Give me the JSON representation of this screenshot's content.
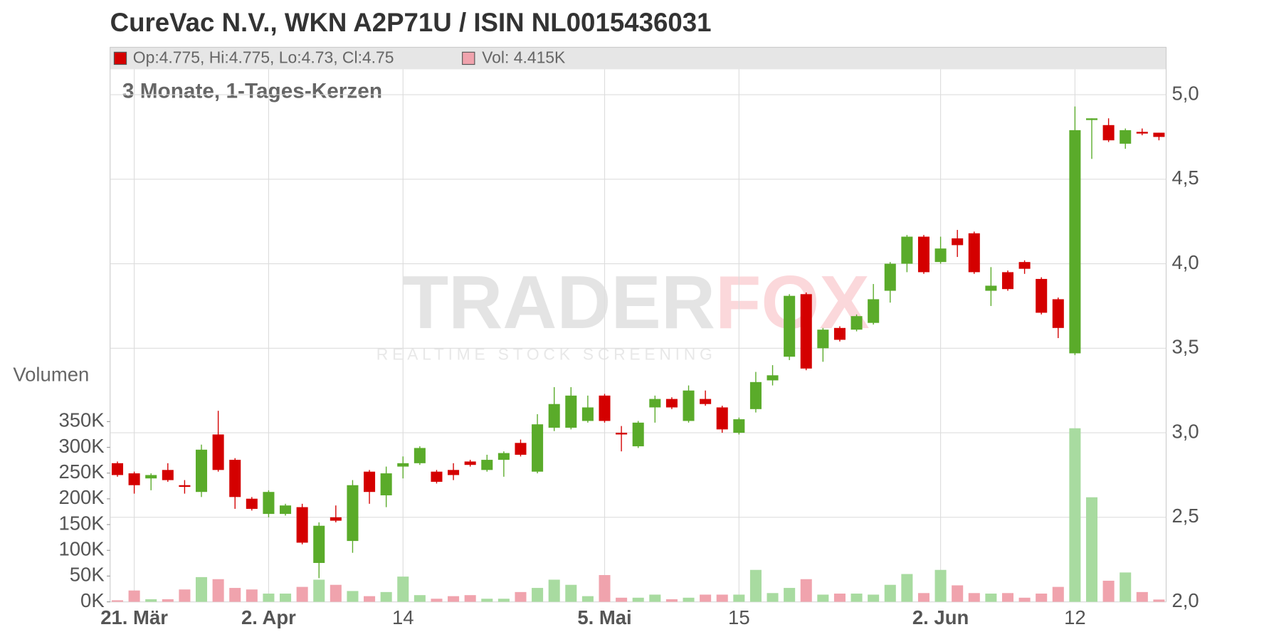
{
  "chart_data": {
    "type": "candlestick",
    "title": "CureVac N.V., WKN A2P71U / ISIN NL0015436031",
    "info": "Op:4.775, Hi:4.775, Lo:4.73, Cl:4.75",
    "volume_info": "Vol: 4.415K",
    "subtitle": "3 Monate, 1-Tages-Kerzen",
    "y2_label": "Volumen",
    "watermark": [
      "TRADER",
      "FOX"
    ],
    "watermark_subtitle": "REALTIME STOCK SCREENING",
    "categories": [
      null,
      "21. Mär",
      null,
      null,
      null,
      null,
      null,
      null,
      null,
      "2. Apr",
      null,
      null,
      null,
      null,
      null,
      null,
      null,
      "14",
      null,
      null,
      null,
      null,
      null,
      null,
      null,
      null,
      null,
      null,
      null,
      "5. Mai",
      null,
      null,
      null,
      null,
      null,
      null,
      null,
      "15",
      null,
      null,
      null,
      null,
      null,
      null,
      null,
      null,
      null,
      null,
      null,
      "2. Jun",
      null,
      null,
      null,
      null,
      null,
      null,
      null,
      "12",
      null,
      null,
      null,
      null,
      null
    ],
    "open": [
      2.82,
      2.76,
      2.73,
      2.78,
      2.69,
      2.65,
      2.99,
      2.84,
      2.61,
      2.52,
      2.52,
      2.56,
      2.23,
      2.5,
      2.36,
      2.77,
      2.63,
      2.8,
      2.82,
      2.77,
      2.78,
      2.83,
      2.78,
      2.84,
      2.94,
      2.77,
      3.03,
      3.03,
      3.07,
      3.22,
      3.0,
      2.92,
      3.15,
      3.2,
      3.07,
      3.2,
      3.15,
      3.0,
      3.14,
      3.31,
      3.45,
      3.82,
      3.5,
      3.62,
      3.61,
      3.65,
      3.84,
      4.0,
      4.16,
      4.01,
      4.15,
      4.18,
      3.84,
      3.95,
      4.01,
      3.91,
      3.79,
      3.47,
      4.85,
      4.82,
      4.71,
      4.78,
      4.775
    ],
    "high": [
      2.83,
      2.77,
      2.76,
      2.82,
      2.72,
      2.93,
      3.13,
      2.85,
      2.62,
      2.66,
      2.58,
      2.58,
      2.47,
      2.57,
      2.72,
      2.78,
      2.8,
      2.86,
      2.92,
      2.78,
      2.82,
      2.84,
      2.87,
      2.89,
      2.96,
      3.11,
      3.27,
      3.27,
      3.22,
      3.23,
      3.04,
      3.07,
      3.22,
      3.21,
      3.28,
      3.25,
      3.16,
      3.09,
      3.36,
      3.4,
      3.82,
      3.83,
      3.62,
      3.63,
      3.7,
      3.88,
      4.01,
      4.17,
      4.17,
      4.16,
      4.2,
      4.19,
      3.98,
      3.96,
      4.02,
      3.92,
      3.8,
      4.93,
      4.86,
      4.86,
      4.8,
      4.8,
      4.775
    ],
    "low": [
      2.74,
      2.64,
      2.66,
      2.71,
      2.64,
      2.62,
      2.77,
      2.55,
      2.54,
      2.5,
      2.51,
      2.34,
      2.14,
      2.47,
      2.29,
      2.58,
      2.56,
      2.73,
      2.81,
      2.7,
      2.72,
      2.8,
      2.77,
      2.74,
      2.86,
      2.76,
      3.01,
      3.02,
      3.06,
      3.06,
      2.89,
      2.91,
      3.06,
      3.14,
      3.06,
      3.16,
      3.0,
      2.99,
      3.12,
      3.28,
      3.43,
      3.37,
      3.42,
      3.54,
      3.6,
      3.64,
      3.77,
      3.95,
      3.94,
      4.0,
      4.04,
      3.94,
      3.75,
      3.84,
      3.94,
      3.7,
      3.56,
      3.46,
      4.62,
      4.72,
      4.68,
      4.76,
      4.73
    ],
    "close": [
      2.75,
      2.69,
      2.75,
      2.72,
      2.68,
      2.9,
      2.78,
      2.62,
      2.55,
      2.65,
      2.57,
      2.35,
      2.45,
      2.48,
      2.69,
      2.65,
      2.76,
      2.82,
      2.91,
      2.71,
      2.75,
      2.81,
      2.84,
      2.88,
      2.87,
      3.05,
      3.17,
      3.22,
      3.15,
      3.07,
      2.99,
      3.06,
      3.2,
      3.15,
      3.25,
      3.17,
      3.02,
      3.08,
      3.3,
      3.34,
      3.81,
      3.38,
      3.61,
      3.55,
      3.69,
      3.79,
      4.0,
      4.16,
      3.95,
      4.09,
      4.11,
      3.95,
      3.87,
      3.85,
      3.97,
      3.71,
      3.62,
      4.79,
      4.86,
      4.73,
      4.79,
      4.77,
      4.75
    ],
    "volume": [
      3000,
      22000,
      5000,
      5000,
      24000,
      48000,
      44000,
      27000,
      24000,
      16000,
      16000,
      29000,
      43000,
      33000,
      21000,
      11000,
      19000,
      49000,
      13000,
      6000,
      11000,
      13000,
      6000,
      6000,
      19000,
      27000,
      43000,
      33000,
      11000,
      52000,
      8000,
      8000,
      14000,
      5000,
      8000,
      14000,
      14000,
      14000,
      62000,
      17000,
      27000,
      44000,
      14000,
      16000,
      16000,
      14000,
      33000,
      54000,
      17000,
      62000,
      32000,
      17000,
      16000,
      17000,
      8000,
      16000,
      29000,
      337000,
      203000,
      41000,
      57000,
      19000,
      4415
    ],
    "up_color": "#5aab2a",
    "down_color": "#d40000",
    "volume_up_color": "#a8dba0",
    "volume_down_color": "#f0a3ad",
    "ylim": [
      2.0,
      5.15
    ],
    "yticks": [
      {
        "value": 2.0,
        "label": "2,0"
      },
      {
        "value": 2.5,
        "label": "2,5"
      },
      {
        "value": 3.0,
        "label": "3,0"
      },
      {
        "value": 3.5,
        "label": "3,5"
      },
      {
        "value": 4.0,
        "label": "4,0"
      },
      {
        "value": 4.5,
        "label": "4,5"
      },
      {
        "value": 5.0,
        "label": "5,0"
      }
    ],
    "y2lim": [
      0,
      1034000
    ],
    "y2ticks": [
      {
        "value": 0,
        "label": "0K"
      },
      {
        "value": 50000,
        "label": "50K"
      },
      {
        "value": 100000,
        "label": "100K"
      },
      {
        "value": 150000,
        "label": "150K"
      },
      {
        "value": 200000,
        "label": "200K"
      },
      {
        "value": 250000,
        "label": "250K"
      },
      {
        "value": 300000,
        "label": "300K"
      },
      {
        "value": 350000,
        "label": "350K"
      }
    ],
    "grid": true
  }
}
